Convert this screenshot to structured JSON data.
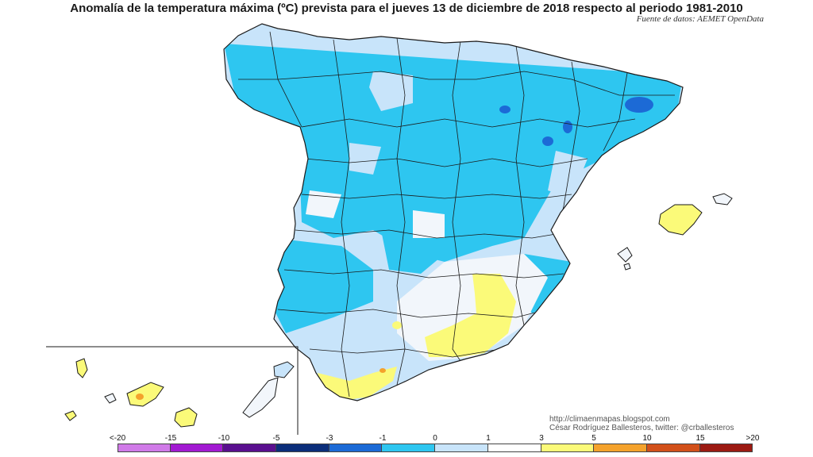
{
  "header": {
    "title": "Anomalía de la temperatura máxima (ºC) prevista para el jueves 13 de diciembre de 2018 respecto al periodo 1981-2010",
    "source": "Fuente de datos: AEMET OpenData"
  },
  "credits": {
    "url": "http://climaenmapas.blogspot.com",
    "author": "César Rodríguez Ballesteros, twitter: @crballesteros"
  },
  "legend": {
    "ticks": [
      "<-20",
      "-15",
      "-10",
      "-5",
      "-3",
      "-1",
      "0",
      "1",
      "3",
      "5",
      "10",
      "15",
      ">20"
    ],
    "colors": [
      "#d07ae8",
      "#a21ad2",
      "#5a0f8f",
      "#0b2e7a",
      "#1c6ad6",
      "#2ec6f0",
      "#c8e4fa",
      "#ffffff",
      "#fbfa79",
      "#f4a22c",
      "#d2501a",
      "#9c1a12",
      "#6a3a12"
    ]
  },
  "map_colors": {
    "land_neutral": "#c8e4fa",
    "cool_1_3": "#2ec6f0",
    "cool_3_5": "#1c6ad6",
    "near_zero": "#f2f6fb",
    "warm_1_3": "#fbfa79",
    "warm_3_5": "#f4a22c",
    "border": "#1a1a1a"
  }
}
